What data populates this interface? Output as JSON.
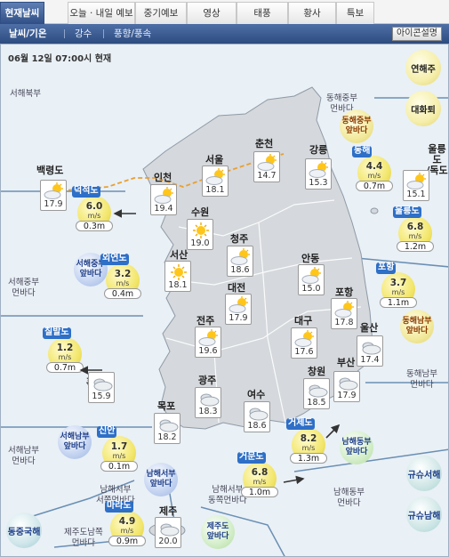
{
  "tabs": [
    {
      "label": "현재날씨",
      "active": true
    },
    {
      "label": "오늘 · 내일 예보",
      "active": false
    },
    {
      "label": "중기예보",
      "active": false
    },
    {
      "label": "영상",
      "active": false
    },
    {
      "label": "태풍",
      "active": false
    },
    {
      "label": "황사",
      "active": false
    },
    {
      "label": "특보",
      "active": false
    }
  ],
  "subtabs": [
    {
      "label": "날씨/기온",
      "active": true
    },
    {
      "label": "강수",
      "active": false
    },
    {
      "label": "풍향/풍속",
      "active": false
    }
  ],
  "legend_button": "아이콘설명",
  "timestamp": "06월 12일 07:00시 현재",
  "side_buttons": [
    {
      "label": "연해주",
      "style": "yellow"
    },
    {
      "label": "대화퇴",
      "style": "yellow"
    },
    {
      "label": "규슈서해",
      "style": "blue"
    },
    {
      "label": "규슈남해",
      "style": "blue"
    },
    {
      "label": "동중국해",
      "style": "teal"
    }
  ],
  "sea_labels": [
    "서해북부",
    "동해중부\n먼바다",
    "서해중부\n먼바다",
    "동해남부\n먼바다",
    "서해남부\n먼바다",
    "남해서부\n서쪽먼바다",
    "남해서부\n동쪽먼바다",
    "남해동부\n먼바다",
    "제주도남쪽\n먼바다"
  ],
  "zones": [
    {
      "label": "동해중부\n앞바다",
      "style": "yellow"
    },
    {
      "label": "서해중부\n앞바다",
      "style": "blue"
    },
    {
      "label": "동해남부\n앞바다",
      "style": "yellow"
    },
    {
      "label": "서해남부\n앞바다",
      "style": "blue"
    },
    {
      "label": "남해서부\n앞바다",
      "style": "blue"
    },
    {
      "label": "남해동부\n앞바다",
      "style": "green"
    },
    {
      "label": "제주도\n앞바다",
      "style": "green"
    }
  ],
  "cities": [
    {
      "name": "백령도",
      "temp": "17.9",
      "icon": "partly-cloudy-icon"
    },
    {
      "name": "인천",
      "temp": "19.4",
      "icon": "partly-cloudy-icon"
    },
    {
      "name": "서울",
      "temp": "18.1",
      "icon": "partly-cloudy-icon"
    },
    {
      "name": "춘천",
      "temp": "14.7",
      "icon": "partly-cloudy-icon"
    },
    {
      "name": "강릉",
      "temp": "15.3",
      "icon": "partly-cloudy-icon"
    },
    {
      "name": "울릉도\n/독도",
      "temp": "15.1",
      "icon": "partly-cloudy-icon"
    },
    {
      "name": "수원",
      "temp": "19.0",
      "icon": "sunny-icon"
    },
    {
      "name": "청주",
      "temp": "18.6",
      "icon": "partly-cloudy-icon"
    },
    {
      "name": "서산",
      "temp": "18.1",
      "icon": "sunny-icon"
    },
    {
      "name": "대전",
      "temp": "17.9",
      "icon": "partly-cloudy-icon"
    },
    {
      "name": "안동",
      "temp": "15.0",
      "icon": "partly-cloudy-icon"
    },
    {
      "name": "포항",
      "temp": "17.8",
      "icon": "partly-cloudy-icon"
    },
    {
      "name": "전주",
      "temp": "19.6",
      "icon": "partly-cloudy-icon"
    },
    {
      "name": "대구",
      "temp": "17.6",
      "icon": "partly-cloudy-icon"
    },
    {
      "name": "울산",
      "temp": "17.4",
      "icon": "cloudy-icon"
    },
    {
      "name": "흑산도",
      "temp": "15.9",
      "icon": "cloudy-icon"
    },
    {
      "name": "광주",
      "temp": "18.3",
      "icon": "cloudy-icon"
    },
    {
      "name": "여수",
      "temp": "18.6",
      "icon": "cloudy-icon"
    },
    {
      "name": "창원",
      "temp": "18.5",
      "icon": "cloudy-icon"
    },
    {
      "name": "부산",
      "temp": "17.9",
      "icon": "cloudy-icon"
    },
    {
      "name": "목포",
      "temp": "18.2",
      "icon": "cloudy-icon"
    },
    {
      "name": "제주",
      "temp": "20.0",
      "icon": "cloudy-icon"
    }
  ],
  "buoys": [
    {
      "name": "덕적도",
      "speed": "6.0",
      "unit": "m/s",
      "wave": "0.3m",
      "arrow": true
    },
    {
      "name": "동해",
      "speed": "4.4",
      "unit": "m/s",
      "wave": "0.7m",
      "arrow": false
    },
    {
      "name": "울릉도",
      "speed": "6.8",
      "unit": "m/s",
      "wave": "1.2m",
      "arrow": false
    },
    {
      "name": "외연도",
      "speed": "3.2",
      "unit": "m/s",
      "wave": "0.4m",
      "arrow": false
    },
    {
      "name": "포항",
      "speed": "3.7",
      "unit": "m/s",
      "wave": "1.1m",
      "arrow": false
    },
    {
      "name": "칠발도",
      "speed": "1.2",
      "unit": "m/s",
      "wave": "0.7m",
      "arrow": true
    },
    {
      "name": "신안",
      "speed": "1.7",
      "unit": "m/s",
      "wave": "0.1m",
      "arrow": false
    },
    {
      "name": "거제도",
      "speed": "8.2",
      "unit": "m/s",
      "wave": "1.3m",
      "arrow": true
    },
    {
      "name": "거문도",
      "speed": "6.8",
      "unit": "m/s",
      "wave": "1.0m",
      "arrow": true
    },
    {
      "name": "마라도",
      "speed": "4.9",
      "unit": "m/s",
      "wave": "0.9m",
      "arrow": false
    }
  ]
}
